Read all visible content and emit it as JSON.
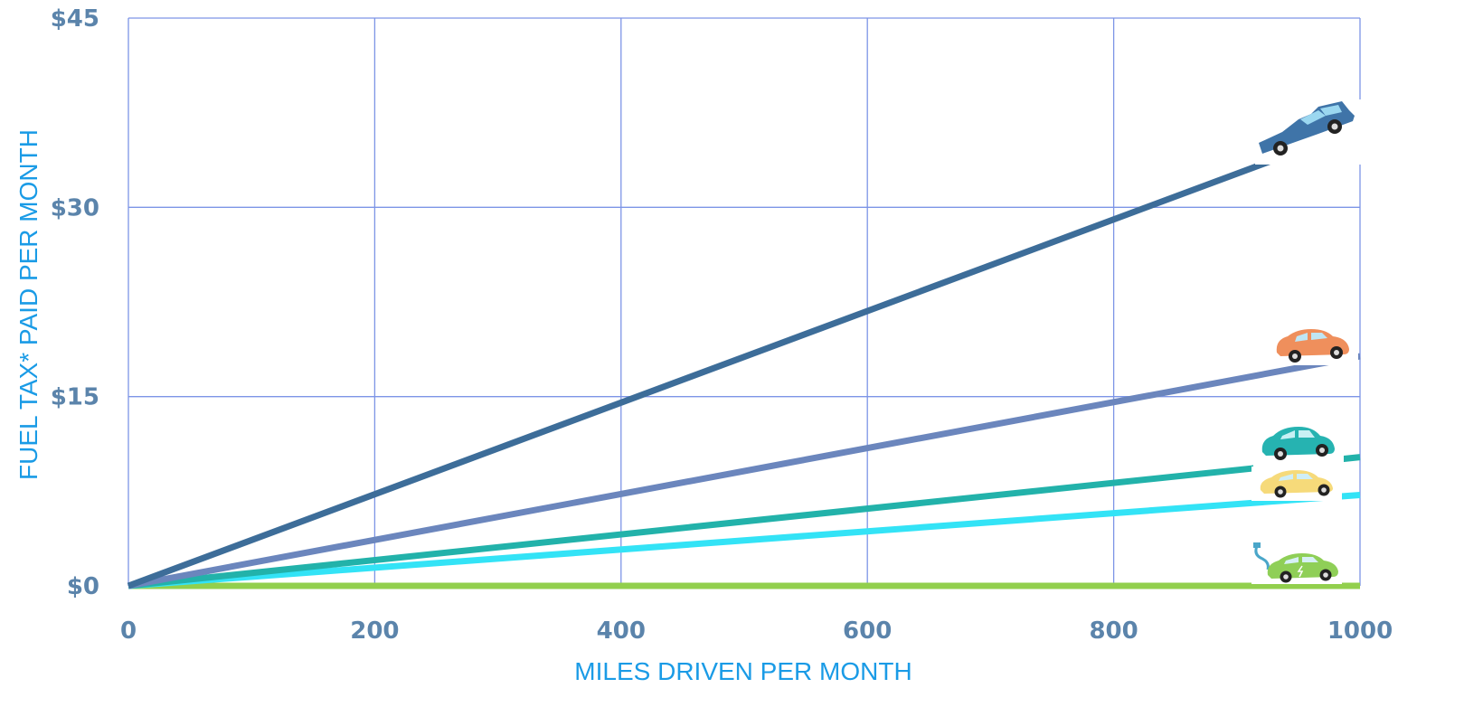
{
  "chart_data": {
    "type": "line",
    "title": "",
    "xlabel": "MILES DRIVEN PER MONTH",
    "ylabel": "FUEL TAX* PAID PER MONTH",
    "xlim": [
      0,
      1000
    ],
    "ylim": [
      0,
      45
    ],
    "x_ticks": [
      "0",
      "200",
      "400",
      "600",
      "800",
      "1000"
    ],
    "x_tick_values": [
      0,
      200,
      400,
      600,
      800,
      1000
    ],
    "y_ticks": [
      "$0",
      "$15",
      "$30",
      "$45"
    ],
    "y_tick_values": [
      0,
      15,
      30,
      45
    ],
    "grid": true,
    "legend": "none (vehicle icons at line ends)",
    "series": [
      {
        "icon": "pickup-truck-icon",
        "color": "#3d6d99",
        "x": [
          0,
          1000
        ],
        "y": [
          0,
          36.3
        ]
      },
      {
        "icon": "orange-car-icon",
        "color": "#6b86bd",
        "x": [
          0,
          1000
        ],
        "y": [
          0,
          18.2
        ]
      },
      {
        "icon": "teal-car-icon",
        "color": "#22b2aa",
        "x": [
          0,
          1000
        ],
        "y": [
          0,
          10.2
        ]
      },
      {
        "icon": "yellow-car-icon",
        "color": "#33e3f6",
        "x": [
          0,
          1000
        ],
        "y": [
          0,
          7.2
        ]
      },
      {
        "icon": "electric-car-icon",
        "color": "#92cf4d",
        "x": [
          0,
          1000
        ],
        "y": [
          0,
          0
        ]
      }
    ]
  },
  "colors": {
    "grid": "#7d95e6",
    "tick_text": "#5b84ab",
    "axis_title": "#1a9be6"
  }
}
